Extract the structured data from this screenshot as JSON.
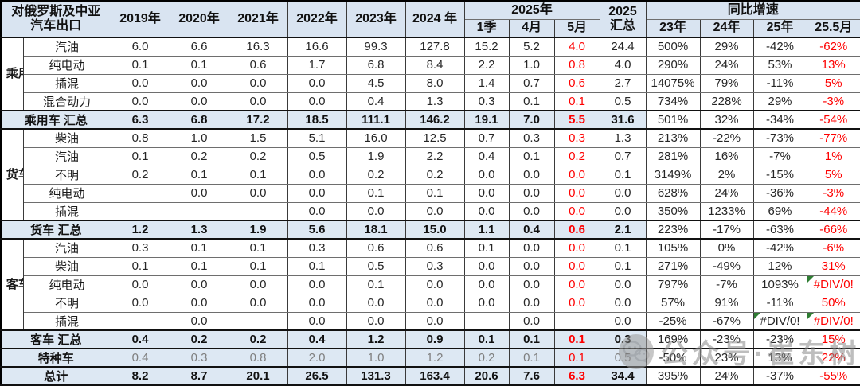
{
  "header": {
    "corner_line1": "对俄罗斯及中亚",
    "corner_line2": "汽车出口",
    "years": [
      "2019年",
      "2020年",
      "2021年",
      "2022年",
      "2023年",
      "2024 年"
    ],
    "y2025_label": "2025年",
    "y2025_subs": [
      "1季",
      "4月",
      "5月"
    ],
    "total_line1": "2025",
    "total_line2": "汇总",
    "growth_label": "同比增速",
    "growth_subs": [
      "23年",
      "24年",
      "25年",
      "25.5月"
    ]
  },
  "chart_data": {
    "type": "table",
    "title": "对俄罗斯及中亚汽车出口",
    "columns": [
      "2019年",
      "2020年",
      "2021年",
      "2022年",
      "2023年",
      "2024 年",
      "2025年1季",
      "2025年4月",
      "2025年5月",
      "2025汇总",
      "同比增速23年",
      "同比增速24年",
      "同比增速25年",
      "同比增速25.5月"
    ],
    "rows": [
      {
        "group": "乘用车",
        "span": 4,
        "label": "汽油",
        "kind": "data",
        "values": [
          "6.0",
          "6.6",
          "16.3",
          "16.6",
          "99.3",
          "127.8",
          "15.2",
          "5.2",
          "4.0",
          "24.4",
          "500%",
          "29%",
          "-42%",
          "-62%"
        ]
      },
      {
        "label": "纯电动",
        "kind": "data",
        "values": [
          "0.1",
          "0.1",
          "0.6",
          "1.7",
          "6.8",
          "8.4",
          "2.2",
          "1.0",
          "0.8",
          "4.0",
          "290%",
          "24%",
          "53%",
          "13%"
        ]
      },
      {
        "label": "插混",
        "kind": "data",
        "values": [
          "0.0",
          "0.0",
          "0.0",
          "0.0",
          "4.5",
          "8.0",
          "1.4",
          "0.7",
          "0.6",
          "2.7",
          "14075%",
          "79%",
          "-11%",
          "5%"
        ]
      },
      {
        "label": "混合动力",
        "kind": "data",
        "values": [
          "0.0",
          "0.0",
          "0.0",
          "0.0",
          "0.4",
          "1.3",
          "0.3",
          "0.1",
          "0.1",
          "0.5",
          "734%",
          "228%",
          "29%",
          "-3%"
        ]
      },
      {
        "label": "乘用车 汇总",
        "kind": "summary",
        "values": [
          "6.3",
          "6.8",
          "17.2",
          "18.5",
          "111.1",
          "146.2",
          "19.1",
          "7.0",
          "5.5",
          "31.6",
          "501%",
          "32%",
          "-34%",
          "-54%"
        ]
      },
      {
        "group": "货车",
        "span": 5,
        "label": "柴油",
        "kind": "data",
        "values": [
          "0.8",
          "1.0",
          "1.5",
          "5.1",
          "16.0",
          "12.5",
          "0.7",
          "0.3",
          "0.3",
          "1.3",
          "213%",
          "-22%",
          "-73%",
          "-77%"
        ]
      },
      {
        "label": "汽油",
        "kind": "data",
        "values": [
          "0.1",
          "0.2",
          "0.2",
          "0.5",
          "1.9",
          "2.2",
          "0.4",
          "0.1",
          "0.2",
          "0.7",
          "281%",
          "16%",
          "-7%",
          "1%"
        ]
      },
      {
        "label": "不明",
        "kind": "data",
        "values": [
          "0.2",
          "0.1",
          "0.1",
          "0.0",
          "0.2",
          "0.2",
          "0.0",
          "0.0",
          "0.0",
          "0.1",
          "3149%",
          "2%",
          "-15%",
          "5%"
        ]
      },
      {
        "label": "纯电动",
        "kind": "data",
        "values": [
          "",
          "0.0",
          "0.0",
          "0.0",
          "0.1",
          "0.1",
          "0.0",
          "0.0",
          "0.0",
          "0.0",
          "628%",
          "24%",
          "-36%",
          "-3%"
        ]
      },
      {
        "label": "插混",
        "kind": "data",
        "values": [
          "",
          "",
          "",
          "0.0",
          "0.0",
          "0.0",
          "0.0",
          "0.0",
          "0.0",
          "0.0",
          "350%",
          "1233%",
          "69%",
          "-44%"
        ]
      },
      {
        "label": "货车 汇总",
        "kind": "summary",
        "values": [
          "1.2",
          "1.3",
          "1.9",
          "5.6",
          "18.1",
          "15.0",
          "1.1",
          "0.4",
          "0.6",
          "2.1",
          "223%",
          "-17%",
          "-63%",
          "-66%"
        ]
      },
      {
        "group": "客车",
        "span": 5,
        "label": "汽油",
        "kind": "data",
        "values": [
          "0.3",
          "0.1",
          "0.1",
          "0.3",
          "0.6",
          "0.6",
          "0.1",
          "0.0",
          "0.0",
          "0.1",
          "105%",
          "0%",
          "-42%",
          "-6%"
        ]
      },
      {
        "label": "柴油",
        "kind": "data",
        "values": [
          "0.1",
          "0.1",
          "0.1",
          "0.1",
          "0.5",
          "0.3",
          "0.0",
          "0.0",
          "0.0",
          "0.1",
          "271%",
          "-49%",
          "12%",
          "31%"
        ]
      },
      {
        "label": "纯电动",
        "kind": "data",
        "green": [
          13
        ],
        "values": [
          "0.0",
          "0.0",
          "0.0",
          "0.0",
          "0.1",
          "0.0",
          "0.0",
          "0.0",
          "0.0",
          "0.0",
          "797%",
          "-7%",
          "1093%",
          "#DIV/0!"
        ]
      },
      {
        "label": "不明",
        "kind": "data",
        "values": [
          "0.0",
          "0.0",
          "0.0",
          "0.0",
          "0.0",
          "0.0",
          "0.0",
          "0.0",
          "0.0",
          "0.0",
          "57%",
          "91%",
          "-11%",
          "50%"
        ]
      },
      {
        "label": "插混",
        "kind": "data",
        "green": [
          12,
          13
        ],
        "values": [
          "",
          "0.0",
          "",
          "0.0",
          "0.0",
          "0.0",
          "",
          "0.0",
          "",
          "0.0",
          "-25%",
          "-67%",
          "#DIV/0!",
          "#DIV/0!"
        ]
      },
      {
        "label": "客车 汇总",
        "kind": "summary",
        "values": [
          "0.4",
          "0.2",
          "0.2",
          "0.4",
          "1.2",
          "0.9",
          "0.1",
          "0.1",
          "0.1",
          "0.3",
          "169%",
          "-23%",
          "-23%",
          "15%"
        ]
      },
      {
        "label": "特种车",
        "kind": "special",
        "values": [
          "0.4",
          "0.3",
          "0.8",
          "2.0",
          "1.0",
          "1.2",
          "0.2",
          "0.1",
          "0.1",
          "0.5",
          "-50%",
          "23%",
          "13%",
          "22%"
        ]
      },
      {
        "label": "总计",
        "kind": "total",
        "values": [
          "8.2",
          "8.7",
          "20.1",
          "26.5",
          "131.3",
          "163.4",
          "20.6",
          "7.6",
          "6.3",
          "34.4",
          "395%",
          "24%",
          "-37%",
          "-55%"
        ]
      }
    ]
  },
  "watermark": {
    "icon": "wechat-icon",
    "text": "公众号·崔东树"
  }
}
